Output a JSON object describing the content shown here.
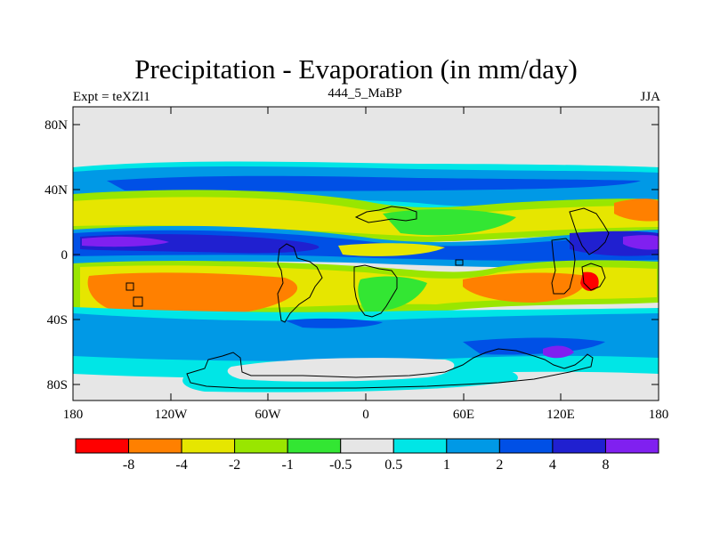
{
  "title": "Precipitation - Evaporation (in mm/day)",
  "left_label": "Expt = teXZl1",
  "center_label": "444_5_MaBP",
  "right_label": "JJA",
  "lat_ticks": [
    "80N",
    "40N",
    "0",
    "40S",
    "80S"
  ],
  "lon_ticks": [
    "180",
    "120W",
    "60W",
    "0",
    "60E",
    "120E",
    "180"
  ],
  "colorbar": {
    "colors": [
      "#ff0000",
      "#ff8000",
      "#e6e600",
      "#99e600",
      "#33e633",
      "#e6e6e6",
      "#00e6e6",
      "#0099e6",
      "#0050e6",
      "#2020d0",
      "#8020f0"
    ],
    "labels": [
      "-8",
      "-4",
      "-2",
      "-1",
      "-0.5",
      "0.5",
      "1",
      "2",
      "4",
      "8"
    ]
  }
}
